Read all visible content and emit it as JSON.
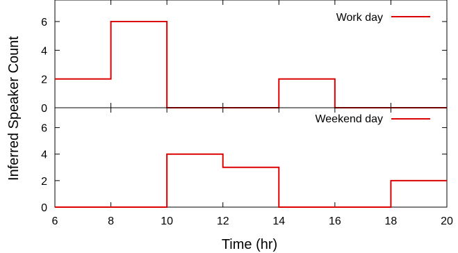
{
  "chart_data": {
    "type": "line",
    "step": true,
    "xlabel": "Time (hr)",
    "ylabel": "Inferred Speaker Count",
    "xlim": [
      6,
      20
    ],
    "xticks": [
      6,
      8,
      10,
      12,
      14,
      16,
      18,
      20
    ],
    "line_color": "#dd0000",
    "panels": [
      {
        "series": [
          {
            "name": "Work day",
            "x": [
              6,
              8,
              10,
              14,
              16,
              20
            ],
            "y": [
              2,
              6,
              0,
              2,
              0,
              0
            ]
          }
        ],
        "ylim": [
          0,
          7.5
        ],
        "yticks": [
          0,
          2,
          4,
          6
        ],
        "legend": "top-right"
      },
      {
        "series": [
          {
            "name": "Weekend day",
            "x": [
              6,
              10,
              12,
              14,
              18,
              20
            ],
            "y": [
              0,
              4,
              3,
              0,
              2,
              2
            ]
          }
        ],
        "ylim": [
          0,
          7.5
        ],
        "yticks": [
          0,
          2,
          4,
          6
        ],
        "legend": "top-right"
      }
    ]
  }
}
